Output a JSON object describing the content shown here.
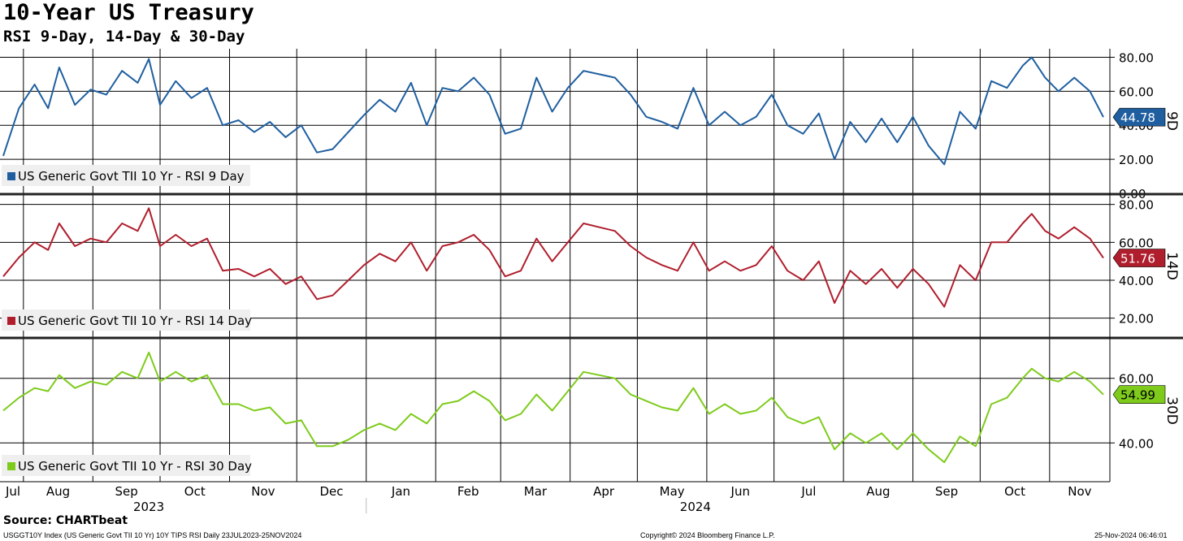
{
  "title": "10-Year US Treasury",
  "subtitle": "RSI 9-Day, 14-Day & 30-Day",
  "source": "Source: CHARTbeat",
  "footer": {
    "left": "USGGT10Y Index (US Generic Govt TII 10 Yr) 10Y TIPS RSI  Daily 23JUL2023-25NOV2024",
    "center": "Copyright© 2024 Bloomberg Finance L.P.",
    "right": "25-Nov-2024 06:46:01"
  },
  "chart_data": {
    "type": "line",
    "x_range": [
      "2023-07-23",
      "2024-11-25"
    ],
    "x_ticks": [
      {
        "label": "Jul",
        "date": "2023-07-23"
      },
      {
        "label": "Aug",
        "date": "2023-08-01"
      },
      {
        "label": "Sep",
        "date": "2023-09-01"
      },
      {
        "label": "Oct",
        "date": "2023-10-01"
      },
      {
        "label": "Nov",
        "date": "2023-11-01"
      },
      {
        "label": "Dec",
        "date": "2023-12-01"
      },
      {
        "label": "Jan",
        "date": "2024-01-01"
      },
      {
        "label": "Feb",
        "date": "2024-02-01"
      },
      {
        "label": "Mar",
        "date": "2024-03-01"
      },
      {
        "label": "Apr",
        "date": "2024-04-01"
      },
      {
        "label": "May",
        "date": "2024-05-01"
      },
      {
        "label": "Jun",
        "date": "2024-06-01"
      },
      {
        "label": "Jul",
        "date": "2024-07-01"
      },
      {
        "label": "Aug",
        "date": "2024-08-01"
      },
      {
        "label": "Sep",
        "date": "2024-09-01"
      },
      {
        "label": "Oct",
        "date": "2024-10-01"
      },
      {
        "label": "Nov",
        "date": "2024-11-01"
      }
    ],
    "year_labels": [
      {
        "label": "2023",
        "date": "2023-10-01"
      },
      {
        "label": "2024",
        "date": "2024-06-01"
      }
    ],
    "grid": true,
    "legend_position": "bottom-left",
    "panels": [
      {
        "series_name": "US Generic Govt TII 10 Yr - RSI 9 Day",
        "axis_label": "9D",
        "color": "#1f5fa0",
        "ylim": [
          0,
          85
        ],
        "yticks": [
          0,
          20,
          40,
          60,
          80
        ],
        "ytick_labels": [
          "0.00",
          "20.00",
          "40.00",
          "60.00",
          "80.00"
        ],
        "last_value": "44.78",
        "points": [
          [
            "2023-07-23",
            22
          ],
          [
            "2023-07-30",
            50
          ],
          [
            "2023-08-06",
            64
          ],
          [
            "2023-08-12",
            50
          ],
          [
            "2023-08-17",
            74
          ],
          [
            "2023-08-24",
            52
          ],
          [
            "2023-08-31",
            61
          ],
          [
            "2023-09-07",
            58
          ],
          [
            "2023-09-14",
            72
          ],
          [
            "2023-09-21",
            65
          ],
          [
            "2023-09-26",
            79
          ],
          [
            "2023-10-01",
            52
          ],
          [
            "2023-10-08",
            66
          ],
          [
            "2023-10-15",
            56
          ],
          [
            "2023-10-22",
            62
          ],
          [
            "2023-10-29",
            40
          ],
          [
            "2023-11-05",
            43
          ],
          [
            "2023-11-12",
            36
          ],
          [
            "2023-11-19",
            42
          ],
          [
            "2023-11-26",
            33
          ],
          [
            "2023-12-03",
            40
          ],
          [
            "2023-12-10",
            24
          ],
          [
            "2023-12-17",
            26
          ],
          [
            "2023-12-24",
            36
          ],
          [
            "2023-12-31",
            46
          ],
          [
            "2024-01-07",
            55
          ],
          [
            "2024-01-14",
            48
          ],
          [
            "2024-01-21",
            65
          ],
          [
            "2024-01-28",
            40
          ],
          [
            "2024-02-04",
            62
          ],
          [
            "2024-02-11",
            60
          ],
          [
            "2024-02-18",
            68
          ],
          [
            "2024-02-25",
            58
          ],
          [
            "2024-03-03",
            35
          ],
          [
            "2024-03-10",
            38
          ],
          [
            "2024-03-17",
            68
          ],
          [
            "2024-03-24",
            48
          ],
          [
            "2024-03-31",
            62
          ],
          [
            "2024-04-07",
            72
          ],
          [
            "2024-04-14",
            70
          ],
          [
            "2024-04-21",
            68
          ],
          [
            "2024-04-28",
            58
          ],
          [
            "2024-05-05",
            45
          ],
          [
            "2024-05-12",
            42
          ],
          [
            "2024-05-19",
            38
          ],
          [
            "2024-05-26",
            62
          ],
          [
            "2024-06-02",
            40
          ],
          [
            "2024-06-09",
            48
          ],
          [
            "2024-06-16",
            40
          ],
          [
            "2024-06-23",
            45
          ],
          [
            "2024-06-30",
            58
          ],
          [
            "2024-07-07",
            40
          ],
          [
            "2024-07-14",
            35
          ],
          [
            "2024-07-21",
            47
          ],
          [
            "2024-07-28",
            20
          ],
          [
            "2024-08-04",
            42
          ],
          [
            "2024-08-11",
            30
          ],
          [
            "2024-08-18",
            44
          ],
          [
            "2024-08-25",
            30
          ],
          [
            "2024-09-01",
            45
          ],
          [
            "2024-09-08",
            28
          ],
          [
            "2024-09-15",
            17
          ],
          [
            "2024-09-22",
            48
          ],
          [
            "2024-09-29",
            38
          ],
          [
            "2024-10-06",
            66
          ],
          [
            "2024-10-13",
            62
          ],
          [
            "2024-10-20",
            75
          ],
          [
            "2024-10-24",
            80
          ],
          [
            "2024-10-30",
            68
          ],
          [
            "2024-11-05",
            60
          ],
          [
            "2024-11-12",
            68
          ],
          [
            "2024-11-19",
            60
          ],
          [
            "2024-11-25",
            44.78
          ]
        ]
      },
      {
        "series_name": "US Generic Govt TII 10 Yr - RSI 14 Day",
        "axis_label": "14D",
        "color": "#b01e2d",
        "ylim": [
          10,
          85
        ],
        "yticks": [
          20,
          40,
          60,
          80
        ],
        "ytick_labels": [
          "20.00",
          "40.00",
          "60.00",
          "80.00"
        ],
        "last_value": "51.76",
        "points": [
          [
            "2023-07-23",
            42
          ],
          [
            "2023-07-30",
            52
          ],
          [
            "2023-08-06",
            60
          ],
          [
            "2023-08-12",
            56
          ],
          [
            "2023-08-17",
            70
          ],
          [
            "2023-08-24",
            58
          ],
          [
            "2023-08-31",
            62
          ],
          [
            "2023-09-07",
            60
          ],
          [
            "2023-09-14",
            70
          ],
          [
            "2023-09-21",
            66
          ],
          [
            "2023-09-26",
            78
          ],
          [
            "2023-10-01",
            58
          ],
          [
            "2023-10-08",
            64
          ],
          [
            "2023-10-15",
            58
          ],
          [
            "2023-10-22",
            62
          ],
          [
            "2023-10-29",
            45
          ],
          [
            "2023-11-05",
            46
          ],
          [
            "2023-11-12",
            42
          ],
          [
            "2023-11-19",
            46
          ],
          [
            "2023-11-26",
            38
          ],
          [
            "2023-12-03",
            42
          ],
          [
            "2023-12-10",
            30
          ],
          [
            "2023-12-17",
            32
          ],
          [
            "2023-12-24",
            40
          ],
          [
            "2023-12-31",
            48
          ],
          [
            "2024-01-07",
            54
          ],
          [
            "2024-01-14",
            50
          ],
          [
            "2024-01-21",
            60
          ],
          [
            "2024-01-28",
            45
          ],
          [
            "2024-02-04",
            58
          ],
          [
            "2024-02-11",
            60
          ],
          [
            "2024-02-18",
            64
          ],
          [
            "2024-02-25",
            56
          ],
          [
            "2024-03-03",
            42
          ],
          [
            "2024-03-10",
            45
          ],
          [
            "2024-03-17",
            62
          ],
          [
            "2024-03-24",
            50
          ],
          [
            "2024-03-31",
            60
          ],
          [
            "2024-04-07",
            70
          ],
          [
            "2024-04-14",
            68
          ],
          [
            "2024-04-21",
            66
          ],
          [
            "2024-04-28",
            58
          ],
          [
            "2024-05-05",
            52
          ],
          [
            "2024-05-12",
            48
          ],
          [
            "2024-05-19",
            45
          ],
          [
            "2024-05-26",
            60
          ],
          [
            "2024-06-02",
            45
          ],
          [
            "2024-06-09",
            50
          ],
          [
            "2024-06-16",
            45
          ],
          [
            "2024-06-23",
            48
          ],
          [
            "2024-06-30",
            58
          ],
          [
            "2024-07-07",
            45
          ],
          [
            "2024-07-14",
            40
          ],
          [
            "2024-07-21",
            50
          ],
          [
            "2024-07-28",
            28
          ],
          [
            "2024-08-04",
            45
          ],
          [
            "2024-08-11",
            38
          ],
          [
            "2024-08-18",
            46
          ],
          [
            "2024-08-25",
            36
          ],
          [
            "2024-09-01",
            46
          ],
          [
            "2024-09-08",
            38
          ],
          [
            "2024-09-15",
            26
          ],
          [
            "2024-09-22",
            48
          ],
          [
            "2024-09-29",
            40
          ],
          [
            "2024-10-06",
            60
          ],
          [
            "2024-10-13",
            60
          ],
          [
            "2024-10-20",
            70
          ],
          [
            "2024-10-24",
            75
          ],
          [
            "2024-10-30",
            66
          ],
          [
            "2024-11-05",
            62
          ],
          [
            "2024-11-12",
            68
          ],
          [
            "2024-11-19",
            62
          ],
          [
            "2024-11-25",
            51.76
          ]
        ]
      },
      {
        "series_name": "US Generic Govt TII 10 Yr - RSI 30 Day",
        "axis_label": "30D",
        "color": "#7ecb1b",
        "ylim": [
          28,
          72
        ],
        "yticks": [
          40,
          60
        ],
        "ytick_labels": [
          "40.00",
          "60.00"
        ],
        "last_value": "54.99",
        "points": [
          [
            "2023-07-23",
            50
          ],
          [
            "2023-07-30",
            54
          ],
          [
            "2023-08-06",
            57
          ],
          [
            "2023-08-12",
            56
          ],
          [
            "2023-08-17",
            61
          ],
          [
            "2023-08-24",
            57
          ],
          [
            "2023-08-31",
            59
          ],
          [
            "2023-09-07",
            58
          ],
          [
            "2023-09-14",
            62
          ],
          [
            "2023-09-21",
            60
          ],
          [
            "2023-09-26",
            68
          ],
          [
            "2023-10-01",
            59
          ],
          [
            "2023-10-08",
            62
          ],
          [
            "2023-10-15",
            59
          ],
          [
            "2023-10-22",
            61
          ],
          [
            "2023-10-29",
            52
          ],
          [
            "2023-11-05",
            52
          ],
          [
            "2023-11-12",
            50
          ],
          [
            "2023-11-19",
            51
          ],
          [
            "2023-11-26",
            46
          ],
          [
            "2023-12-03",
            47
          ],
          [
            "2023-12-10",
            39
          ],
          [
            "2023-12-17",
            39
          ],
          [
            "2023-12-24",
            41
          ],
          [
            "2023-12-31",
            44
          ],
          [
            "2024-01-07",
            46
          ],
          [
            "2024-01-14",
            44
          ],
          [
            "2024-01-21",
            49
          ],
          [
            "2024-01-28",
            46
          ],
          [
            "2024-02-04",
            52
          ],
          [
            "2024-02-11",
            53
          ],
          [
            "2024-02-18",
            56
          ],
          [
            "2024-02-25",
            53
          ],
          [
            "2024-03-03",
            47
          ],
          [
            "2024-03-10",
            49
          ],
          [
            "2024-03-17",
            55
          ],
          [
            "2024-03-24",
            50
          ],
          [
            "2024-03-31",
            56
          ],
          [
            "2024-04-07",
            62
          ],
          [
            "2024-04-14",
            61
          ],
          [
            "2024-04-21",
            60
          ],
          [
            "2024-04-28",
            55
          ],
          [
            "2024-05-05",
            53
          ],
          [
            "2024-05-12",
            51
          ],
          [
            "2024-05-19",
            50
          ],
          [
            "2024-05-26",
            57
          ],
          [
            "2024-06-02",
            49
          ],
          [
            "2024-06-09",
            52
          ],
          [
            "2024-06-16",
            49
          ],
          [
            "2024-06-23",
            50
          ],
          [
            "2024-06-30",
            54
          ],
          [
            "2024-07-07",
            48
          ],
          [
            "2024-07-14",
            46
          ],
          [
            "2024-07-21",
            48
          ],
          [
            "2024-07-28",
            38
          ],
          [
            "2024-08-04",
            43
          ],
          [
            "2024-08-11",
            40
          ],
          [
            "2024-08-18",
            43
          ],
          [
            "2024-08-25",
            38
          ],
          [
            "2024-09-01",
            43
          ],
          [
            "2024-09-08",
            38
          ],
          [
            "2024-09-15",
            34
          ],
          [
            "2024-09-22",
            42
          ],
          [
            "2024-09-29",
            39
          ],
          [
            "2024-10-06",
            52
          ],
          [
            "2024-10-13",
            54
          ],
          [
            "2024-10-20",
            60
          ],
          [
            "2024-10-24",
            63
          ],
          [
            "2024-10-30",
            60
          ],
          [
            "2024-11-05",
            59
          ],
          [
            "2024-11-12",
            62
          ],
          [
            "2024-11-19",
            59
          ],
          [
            "2024-11-25",
            54.99
          ]
        ]
      }
    ]
  }
}
